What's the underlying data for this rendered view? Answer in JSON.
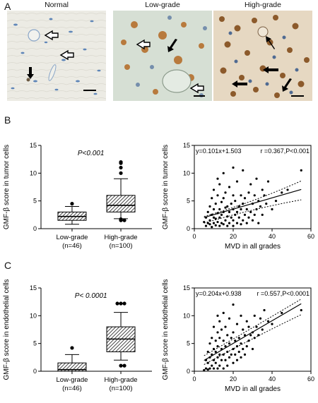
{
  "panel_a": {
    "letter": "A",
    "images": [
      {
        "title": "Normal"
      },
      {
        "title": "Low-grade"
      },
      {
        "title": "High-grade"
      }
    ]
  },
  "panel_b": {
    "letter": "B"
  },
  "panel_c": {
    "letter": "C"
  },
  "colors": {
    "axis": "#000000",
    "hatch": "#333333",
    "point": "#000000"
  },
  "chart_data": [
    {
      "type": "box",
      "panel": "B",
      "ylabel": "GMF-β score in tumor cells",
      "ylim": [
        0,
        15
      ],
      "yticks": [
        0,
        5,
        10,
        15
      ],
      "pvalue": "P<0.001",
      "categories": [
        "Low-grade\n(n=46)",
        "High-grade\n(n=100)"
      ],
      "category_labels": [
        [
          "Low-grade",
          "(n=46)"
        ],
        [
          "High-grade",
          "(n=100)"
        ]
      ],
      "boxes": [
        {
          "whisker_low": 0.8,
          "q1": 1.5,
          "median": 2.2,
          "q3": 3.0,
          "whisker_high": 4.0,
          "outliers": [
            4.5
          ]
        },
        {
          "whisker_low": 1.8,
          "q1": 3.0,
          "median": 4.2,
          "q3": 6.0,
          "whisker_high": 9.0,
          "outliers": [
            1.5,
            1.5,
            1.6,
            1.7,
            10.0,
            11.0,
            11.8,
            12.0
          ]
        }
      ]
    },
    {
      "type": "scatter",
      "panel": "B",
      "ylabel": "GMF-β score in tumor cells",
      "xlabel": "MVD in all grades",
      "xlim": [
        0,
        60
      ],
      "ylim": [
        0,
        15
      ],
      "xticks": [
        0,
        20,
        40,
        60
      ],
      "yticks": [
        0,
        5,
        10,
        15
      ],
      "equation": "y=0.101x+1.503",
      "stat": "r =0.367,P<0.001",
      "regression": {
        "slope": 0.101,
        "intercept": 1.503,
        "x_range": [
          5,
          55
        ]
      },
      "ci": {
        "upper": [
          [
            5,
            2.2
          ],
          [
            30,
            4.7
          ],
          [
            55,
            8.6
          ]
        ],
        "lower": [
          [
            5,
            1.0
          ],
          [
            30,
            3.6
          ],
          [
            55,
            5.2
          ]
        ]
      },
      "points": [
        [
          5,
          1.2
        ],
        [
          6,
          0.5
        ],
        [
          6,
          2.0
        ],
        [
          7,
          1.0
        ],
        [
          7,
          3.0
        ],
        [
          8,
          0.8
        ],
        [
          8,
          1.5
        ],
        [
          8,
          4.0
        ],
        [
          9,
          0.3
        ],
        [
          9,
          2.5
        ],
        [
          9,
          5.5
        ],
        [
          10,
          1.0
        ],
        [
          10,
          2.0
        ],
        [
          10,
          3.5
        ],
        [
          10,
          7.0
        ],
        [
          11,
          0.6
        ],
        [
          11,
          1.8
        ],
        [
          11,
          4.5
        ],
        [
          12,
          1.2
        ],
        [
          12,
          2.8
        ],
        [
          12,
          6.0
        ],
        [
          12,
          9.0
        ],
        [
          13,
          0.5
        ],
        [
          13,
          2.0
        ],
        [
          13,
          3.5
        ],
        [
          13,
          8.0
        ],
        [
          14,
          1.0
        ],
        [
          14,
          2.5
        ],
        [
          14,
          4.8
        ],
        [
          15,
          0.8
        ],
        [
          15,
          3.0
        ],
        [
          15,
          5.5
        ],
        [
          15,
          10.0
        ],
        [
          16,
          1.5
        ],
        [
          16,
          3.8
        ],
        [
          16,
          6.5
        ],
        [
          17,
          0.5
        ],
        [
          17,
          2.2
        ],
        [
          17,
          4.0
        ],
        [
          18,
          1.0
        ],
        [
          18,
          3.0
        ],
        [
          18,
          7.5
        ],
        [
          19,
          2.0
        ],
        [
          19,
          4.5
        ],
        [
          20,
          0.5
        ],
        [
          20,
          1.5
        ],
        [
          20,
          3.5
        ],
        [
          20,
          6.0
        ],
        [
          20,
          11.0
        ],
        [
          21,
          2.5
        ],
        [
          21,
          5.0
        ],
        [
          22,
          1.0
        ],
        [
          22,
          3.0
        ],
        [
          22,
          8.5
        ],
        [
          23,
          2.0
        ],
        [
          23,
          4.0
        ],
        [
          24,
          0.8
        ],
        [
          24,
          3.5
        ],
        [
          24,
          6.0
        ],
        [
          25,
          1.5
        ],
        [
          25,
          4.5
        ],
        [
          25,
          10.5
        ],
        [
          26,
          2.5
        ],
        [
          26,
          5.5
        ],
        [
          27,
          1.0
        ],
        [
          27,
          3.5
        ],
        [
          28,
          2.0
        ],
        [
          28,
          6.5
        ],
        [
          29,
          3.0
        ],
        [
          29,
          8.0
        ],
        [
          30,
          1.5
        ],
        [
          30,
          4.5
        ],
        [
          31,
          2.5
        ],
        [
          31,
          6.0
        ],
        [
          32,
          3.5
        ],
        [
          32,
          9.0
        ],
        [
          33,
          1.0
        ],
        [
          33,
          5.0
        ],
        [
          34,
          4.0
        ],
        [
          35,
          2.5
        ],
        [
          35,
          7.0
        ],
        [
          36,
          6.0
        ],
        [
          37,
          4.5
        ],
        [
          38,
          8.5
        ],
        [
          40,
          3.5
        ],
        [
          42,
          5.0
        ],
        [
          45,
          6.5
        ],
        [
          48,
          7.0
        ],
        [
          55,
          10.5
        ]
      ]
    },
    {
      "type": "box",
      "panel": "C",
      "ylabel": "GMF-β score in endothelial cells",
      "ylim": [
        0,
        15
      ],
      "yticks": [
        0,
        5,
        10,
        15
      ],
      "pvalue": "P< 0.0001",
      "categories": [
        "Low-grade\n(n=46)",
        "High-grade\n(n=100)"
      ],
      "category_labels": [
        [
          "Low-grade",
          "(n=46)"
        ],
        [
          "High-grade",
          "(n=100)"
        ]
      ],
      "boxes": [
        {
          "whisker_low": 0,
          "q1": 0,
          "median": 0.3,
          "q3": 1.5,
          "whisker_high": 3.0,
          "outliers": [
            4.2
          ]
        },
        {
          "whisker_low": 2.0,
          "q1": 3.5,
          "median": 5.8,
          "q3": 8.0,
          "whisker_high": 10.6,
          "outliers": [
            1.0,
            1.0,
            12.2,
            12.2,
            12.2
          ]
        }
      ]
    },
    {
      "type": "scatter",
      "panel": "C",
      "ylabel": "GMF-β score in endothelial cells",
      "xlabel": "MVD in all grades",
      "xlim": [
        0,
        60
      ],
      "ylim": [
        0,
        15
      ],
      "xticks": [
        0,
        20,
        40,
        60
      ],
      "yticks": [
        0,
        5,
        10,
        15
      ],
      "equation": "y=0.204x+0.938",
      "stat": "r =0.557,P<0.0001",
      "regression": {
        "slope": 0.204,
        "intercept": 0.938,
        "x_range": [
          5,
          55
        ]
      },
      "ci": {
        "upper": [
          [
            5,
            2.8
          ],
          [
            30,
            7.8
          ],
          [
            55,
            13.0
          ]
        ],
        "lower": [
          [
            5,
            1.2
          ],
          [
            30,
            6.0
          ],
          [
            55,
            10.2
          ]
        ]
      },
      "points": [
        [
          5,
          0.2
        ],
        [
          6,
          0.5
        ],
        [
          6,
          2.0
        ],
        [
          7,
          0.3
        ],
        [
          7,
          1.5
        ],
        [
          7,
          3.5
        ],
        [
          8,
          0.5
        ],
        [
          8,
          2.5
        ],
        [
          8,
          5.0
        ],
        [
          9,
          1.0
        ],
        [
          9,
          3.0
        ],
        [
          9,
          6.0
        ],
        [
          10,
          0.5
        ],
        [
          10,
          2.0
        ],
        [
          10,
          4.0
        ],
        [
          10,
          8.0
        ],
        [
          11,
          1.5
        ],
        [
          11,
          3.5
        ],
        [
          11,
          5.5
        ],
        [
          12,
          0.5
        ],
        [
          12,
          2.5
        ],
        [
          12,
          4.5
        ],
        [
          12,
          7.0
        ],
        [
          12,
          10.0
        ],
        [
          13,
          1.0
        ],
        [
          13,
          3.0
        ],
        [
          13,
          6.0
        ],
        [
          13,
          9.0
        ],
        [
          14,
          2.0
        ],
        [
          14,
          4.0
        ],
        [
          14,
          7.5
        ],
        [
          15,
          0.5
        ],
        [
          15,
          3.0
        ],
        [
          15,
          5.5
        ],
        [
          15,
          10.5
        ],
        [
          16,
          2.0
        ],
        [
          16,
          4.5
        ],
        [
          16,
          8.0
        ],
        [
          17,
          1.0
        ],
        [
          17,
          3.5
        ],
        [
          17,
          6.5
        ],
        [
          18,
          2.5
        ],
        [
          18,
          5.0
        ],
        [
          18,
          9.5
        ],
        [
          19,
          3.0
        ],
        [
          19,
          6.0
        ],
        [
          20,
          1.5
        ],
        [
          20,
          4.0
        ],
        [
          20,
          7.0
        ],
        [
          20,
          12.0
        ],
        [
          21,
          3.0
        ],
        [
          21,
          5.5
        ],
        [
          22,
          2.0
        ],
        [
          22,
          4.5
        ],
        [
          22,
          8.5
        ],
        [
          23,
          3.5
        ],
        [
          23,
          6.0
        ],
        [
          24,
          2.5
        ],
        [
          24,
          5.0
        ],
        [
          24,
          10.0
        ],
        [
          25,
          4.0
        ],
        [
          25,
          7.5
        ],
        [
          26,
          3.0
        ],
        [
          26,
          6.5
        ],
        [
          27,
          4.5
        ],
        [
          27,
          9.0
        ],
        [
          28,
          5.5
        ],
        [
          28,
          8.0
        ],
        [
          29,
          6.5
        ],
        [
          30,
          4.0
        ],
        [
          30,
          7.0
        ],
        [
          31,
          6.0
        ],
        [
          31,
          10.0
        ],
        [
          32,
          8.0
        ],
        [
          33,
          6.5
        ],
        [
          34,
          9.5
        ],
        [
          35,
          7.5
        ],
        [
          36,
          11.0
        ],
        [
          38,
          9.0
        ],
        [
          40,
          8.5
        ],
        [
          45,
          10.5
        ],
        [
          55,
          11.0
        ]
      ]
    }
  ]
}
